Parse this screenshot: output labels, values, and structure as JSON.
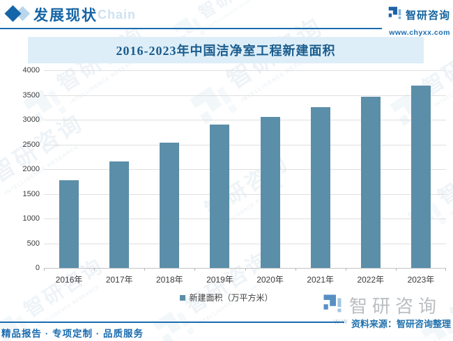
{
  "header": {
    "section_title": "发展现状",
    "background_word": "Chain"
  },
  "brand": {
    "name": "智研咨询",
    "website": "www.chyxx.com",
    "watermark_sub": "INTELLIGENCE RESEARCH"
  },
  "chart": {
    "title": "2016-2023年中国洁净室工程新建面积",
    "legend_label": "新建面积（万平方米）"
  },
  "chart_data": {
    "type": "bar",
    "title": "2016-2023年中国洁净室工程新建面积",
    "categories": [
      "2016年",
      "2017年",
      "2018年",
      "2019年",
      "2020年",
      "2021年",
      "2022年",
      "2023年"
    ],
    "values": [
      1780,
      2150,
      2540,
      2900,
      3050,
      3260,
      3470,
      3690
    ],
    "series_name": "新建面积（万平方米）",
    "xlabel": "",
    "ylabel": "",
    "ylim": [
      0,
      4000
    ],
    "ytick_step": 500,
    "grid": true,
    "legend_position": "bottom",
    "bar_color": "#5b8ea8"
  },
  "footer": {
    "services": "精品报告 · 专项定制 · 品质服务",
    "source": "资料来源：智研咨询整理",
    "ghost": "w-w"
  }
}
